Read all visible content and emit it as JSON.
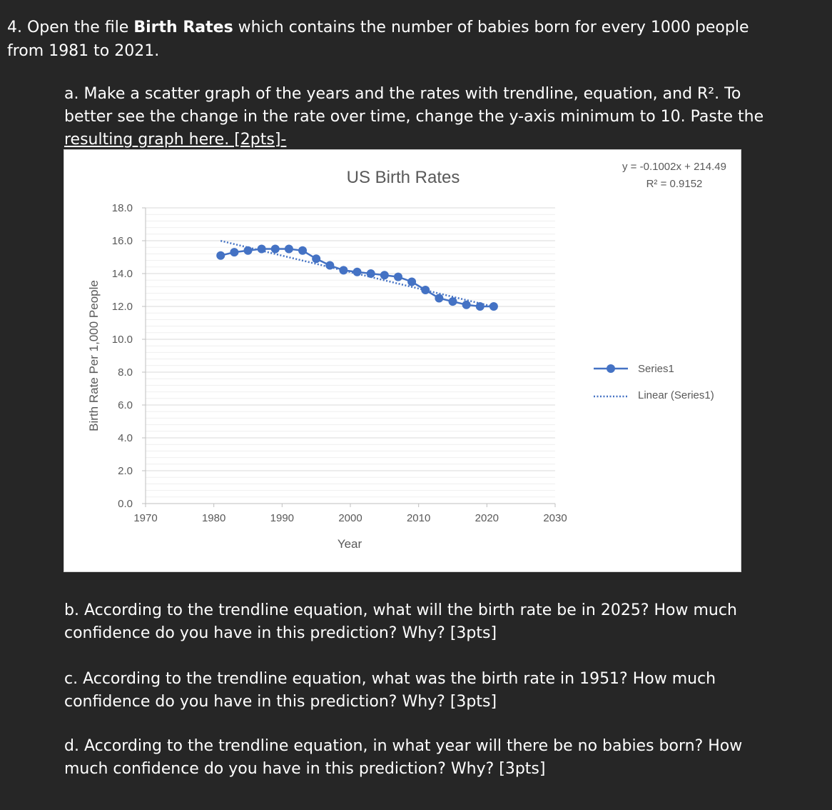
{
  "question": {
    "line1_prefix": "4. Open the file ",
    "line1_bold": "Birth Rates",
    "line1_suffix": " which contains the number of babies born for every 1000 people",
    "line2": "from 1981 to 2021."
  },
  "part_a": {
    "line1": "a. Make a scatter graph of the years and the rates with trendline, equation, and R².  To",
    "line2": "better see the change in the rate over time, change the y-axis minimum to 10.  Paste the",
    "line3": "resulting graph here. [2pts]-"
  },
  "part_b": {
    "line1": "b. According to the trendline equation, what will the birth rate be in 2025? How much",
    "line2": "confidence do you have in this prediction?  Why? [3pts]"
  },
  "part_c": {
    "line1": "c. According to the trendline equation, what was the birth rate in 1951?  How much",
    "line2": "confidence do you have in this prediction? Why?  [3pts]"
  },
  "part_d": {
    "line1": "d. According to the trendline equation, in what year will there be no babies born?  How",
    "line2": "much confidence do you have in this prediction? Why?  [3pts]"
  },
  "chart_data": {
    "type": "scatter",
    "title": "US Birth Rates",
    "xlabel": "Year",
    "ylabel": "Birth Rate Per 1,000 People",
    "xlim": [
      1970,
      2030
    ],
    "ylim": [
      0,
      18
    ],
    "x_ticks": [
      "1970",
      "1980",
      "1990",
      "2000",
      "2010",
      "2020",
      "2030"
    ],
    "y_ticks": [
      "0.0",
      "2.0",
      "4.0",
      "6.0",
      "8.0",
      "10.0",
      "12.0",
      "14.0",
      "16.0",
      "18.0"
    ],
    "grid": true,
    "legend_position": "right",
    "series": [
      {
        "name": "Series1",
        "color": "#4472c4",
        "x": [
          1981,
          1983,
          1985,
          1987,
          1989,
          1991,
          1993,
          1995,
          1997,
          1999,
          2001,
          2003,
          2005,
          2007,
          2009,
          2011,
          2013,
          2015,
          2017,
          2019,
          2021
        ],
        "y": [
          15.1,
          15.3,
          15.4,
          15.5,
          15.5,
          15.5,
          15.4,
          14.9,
          14.5,
          14.2,
          14.1,
          14.0,
          13.9,
          13.8,
          13.5,
          13.0,
          12.5,
          12.3,
          12.1,
          12.0,
          12.0
        ]
      }
    ],
    "trendline": {
      "name": "Linear (Series1)",
      "slope": -0.1002,
      "intercept": 214.49,
      "x_range": [
        1981,
        2021
      ],
      "equation_label": "y = -0.1002x + 214.49",
      "r2_label": "R² = 0.9152"
    }
  }
}
